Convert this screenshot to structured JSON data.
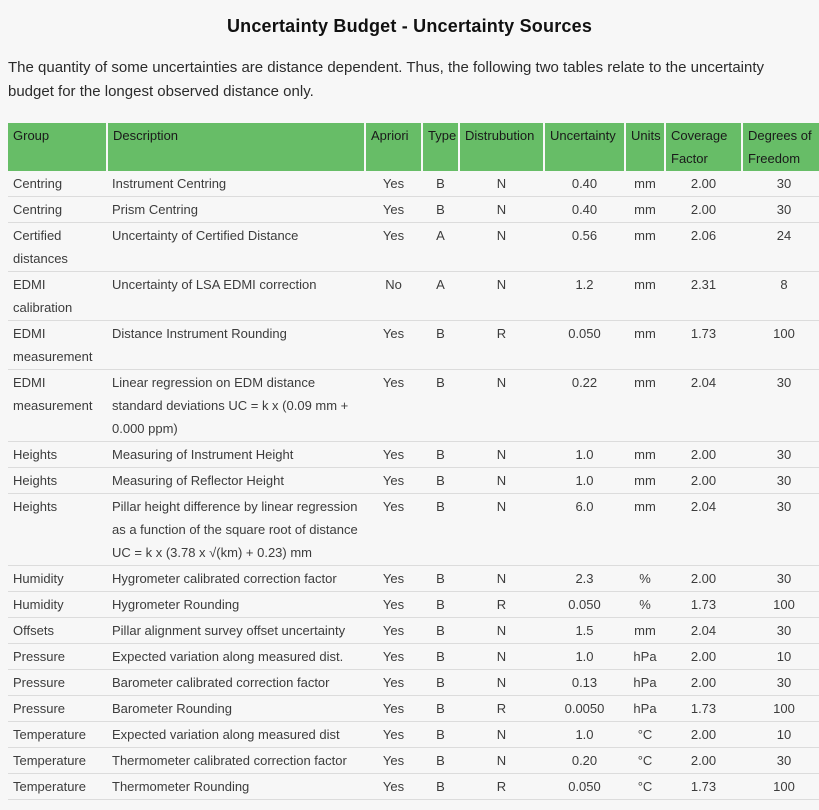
{
  "page": {
    "title": "Uncertainty Budget - Uncertainty Sources",
    "intro": "The quantity of some uncertainties are distance dependent. Thus, the following two tables relate to the uncertainty budget for the longest observed distance only."
  },
  "colors": {
    "header_bg": "#67bd67",
    "header_text": "#1a1a1a",
    "body_text": "#3c3c3c",
    "row_border": "#dcdcdc",
    "page_bg": "#f7f7f7"
  },
  "table": {
    "columns": [
      {
        "key": "group",
        "label": "Group",
        "align": "left"
      },
      {
        "key": "description",
        "label": "Description",
        "align": "left"
      },
      {
        "key": "apriori",
        "label": "Apriori",
        "align": "center"
      },
      {
        "key": "type",
        "label": "Type",
        "align": "center"
      },
      {
        "key": "distribution",
        "label": "Distrubution",
        "align": "center"
      },
      {
        "key": "uncertainty",
        "label": "Uncertainty",
        "align": "center"
      },
      {
        "key": "units",
        "label": "Units",
        "align": "center"
      },
      {
        "key": "coverage_factor",
        "label": "Coverage Factor",
        "align": "center"
      },
      {
        "key": "degrees_of_freedom",
        "label": "Degrees of Freedom",
        "align": "center"
      }
    ],
    "rows": [
      [
        "Centring",
        "Instrument Centring",
        "Yes",
        "B",
        "N",
        "0.40",
        "mm",
        "2.00",
        "30"
      ],
      [
        "Centring",
        "Prism Centring",
        "Yes",
        "B",
        "N",
        "0.40",
        "mm",
        "2.00",
        "30"
      ],
      [
        "Certified distances",
        "Uncertainty of Certified Distance",
        "Yes",
        "A",
        "N",
        "0.56",
        "mm",
        "2.06",
        "24"
      ],
      [
        "EDMI calibration",
        "Uncertainty of LSA EDMI correction",
        "No",
        "A",
        "N",
        "1.2",
        "mm",
        "2.31",
        "8"
      ],
      [
        "EDMI measurement",
        "Distance Instrument Rounding",
        "Yes",
        "B",
        "R",
        "0.050",
        "mm",
        "1.73",
        "100"
      ],
      [
        "EDMI measurement",
        "Linear regression on EDM distance standard deviations UC = k x (0.09 mm + 0.000 ppm)",
        "Yes",
        "B",
        "N",
        "0.22",
        "mm",
        "2.04",
        "30"
      ],
      [
        "Heights",
        "Measuring of Instrument Height",
        "Yes",
        "B",
        "N",
        "1.0",
        "mm",
        "2.00",
        "30"
      ],
      [
        "Heights",
        "Measuring of Reflector Height",
        "Yes",
        "B",
        "N",
        "1.0",
        "mm",
        "2.00",
        "30"
      ],
      [
        "Heights",
        "Pillar height difference by linear regression as a function of the square root of distance UC = k x (3.78 x √(km) + 0.23) mm",
        "Yes",
        "B",
        "N",
        "6.0",
        "mm",
        "2.04",
        "30"
      ],
      [
        "Humidity",
        "Hygrometer calibrated correction factor",
        "Yes",
        "B",
        "N",
        "2.3",
        "%",
        "2.00",
        "30"
      ],
      [
        "Humidity",
        "Hygrometer Rounding",
        "Yes",
        "B",
        "R",
        "0.050",
        "%",
        "1.73",
        "100"
      ],
      [
        "Offsets",
        "Pillar alignment survey offset uncertainty",
        "Yes",
        "B",
        "N",
        "1.5",
        "mm",
        "2.04",
        "30"
      ],
      [
        "Pressure",
        "Expected variation along measured dist.",
        "Yes",
        "B",
        "N",
        "1.0",
        "hPa",
        "2.00",
        "10"
      ],
      [
        "Pressure",
        "Barometer calibrated correction factor",
        "Yes",
        "B",
        "N",
        "0.13",
        "hPa",
        "2.00",
        "30"
      ],
      [
        "Pressure",
        "Barometer Rounding",
        "Yes",
        "B",
        "R",
        "0.0050",
        "hPa",
        "1.73",
        "100"
      ],
      [
        "Temperature",
        "Expected variation along measured dist",
        "Yes",
        "B",
        "N",
        "1.0",
        "°C",
        "2.00",
        "10"
      ],
      [
        "Temperature",
        "Thermometer calibrated correction factor",
        "Yes",
        "B",
        "N",
        "0.20",
        "°C",
        "2.00",
        "30"
      ],
      [
        "Temperature",
        "Thermometer Rounding",
        "Yes",
        "B",
        "R",
        "0.050",
        "°C",
        "1.73",
        "100"
      ]
    ]
  }
}
